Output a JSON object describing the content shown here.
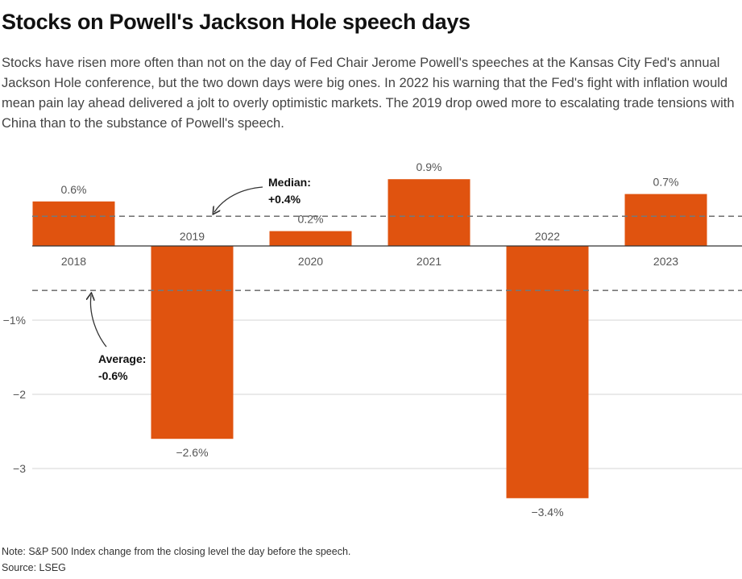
{
  "header": {
    "title": "Stocks on Powell's Jackson Hole speech days",
    "subtitle": "Stocks have risen more often than not on the day of Fed Chair Jerome Powell's speeches at the Kansas City Fed's annual Jackson Hole conference, but the two down days were big ones. In 2022 his warning that the Fed's fight with inflation would mean pain lay ahead delivered a jolt to overly optimistic markets. The 2019 drop owed more to escalating trade tensions with China than to the substance of Powell's speech."
  },
  "chart_data": {
    "type": "bar",
    "categories": [
      "2018",
      "2019",
      "2020",
      "2021",
      "2022",
      "2023"
    ],
    "values": [
      0.6,
      -2.6,
      0.2,
      0.9,
      -3.4,
      0.7
    ],
    "value_labels": [
      "0.6%",
      "−2.6%",
      "0.2%",
      "0.9%",
      "−3.4%",
      "0.7%"
    ],
    "ylim": [
      -3.6,
      1.1
    ],
    "yticks": [
      {
        "value": -1,
        "label": "−1%"
      },
      {
        "value": -2,
        "label": "−2"
      },
      {
        "value": -3,
        "label": "−3"
      }
    ],
    "bar_color": "#e0530f",
    "grid": true,
    "reference_lines": [
      {
        "name": "Median",
        "value": 0.4,
        "label_line1": "Median:",
        "label_line2": "+0.4%"
      },
      {
        "name": "Average",
        "value": -0.6,
        "label_line1": "Average:",
        "label_line2": "-0.6%"
      }
    ]
  },
  "footer": {
    "note": "Note: S&P 500 Index change from the closing level the day before the speech.",
    "source": "Source: LSEG"
  }
}
